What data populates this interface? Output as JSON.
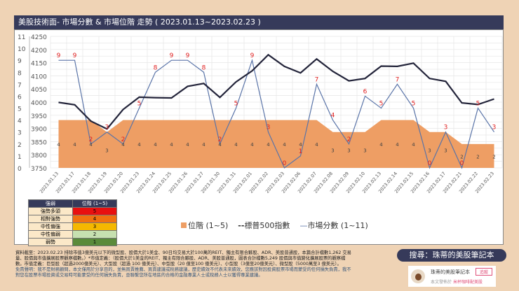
{
  "title": "美股技術面- 市場分數 & 市場位階 走勢 ( 2023.01.13~2023.02.23 )",
  "chart_data": {
    "type": "line",
    "categories": [
      "2023.01.13",
      "2023.01.17",
      "2023.01.18",
      "2023.01.19",
      "2023.01.20",
      "2023.01.23",
      "2023.01.24",
      "2023.01.25",
      "2023.01.26",
      "2023.01.27",
      "2023.01.30",
      "2023.01.31",
      "2023.02.01",
      "2023.02.02",
      "2023.02.03",
      "2023.02.06",
      "2023.02.07",
      "2023.02.08",
      "2023.02.09",
      "2023.02.10",
      "2023.02.13",
      "2023.02.14",
      "2023.02.15",
      "2023.02.16",
      "2023.02.17",
      "2023.02.21",
      "2023.02.22",
      "2023.02.23"
    ],
    "series": [
      {
        "name": "位階 (1~5)",
        "type": "area",
        "axis": "left-score",
        "color": "#ee9e64",
        "values": [
          4,
          4,
          4,
          3,
          4,
          4,
          4,
          4,
          4,
          4,
          4,
          4,
          4,
          4,
          4,
          4,
          4,
          3,
          3,
          3,
          4,
          4,
          4,
          3,
          3,
          2,
          2,
          2
        ]
      },
      {
        "name": "標普500指數",
        "type": "line",
        "axis": "left-index",
        "color": "#23243a",
        "values": [
          3999,
          3990,
          3928,
          3898,
          3972,
          4019,
          4017,
          4016,
          4060,
          4071,
          4018,
          4077,
          4119,
          4180,
          4136,
          4111,
          4164,
          4117,
          4081,
          4090,
          4137,
          4136,
          4148,
          4090,
          4079,
          3997,
          3991,
          4012
        ]
      },
      {
        "name": "市場分數 (1~11)",
        "type": "line",
        "axis": "left-score",
        "color": "#5a74a8",
        "values": [
          9,
          9,
          2,
          3,
          2,
          5,
          8,
          9,
          9,
          8,
          2,
          5,
          9,
          3,
          0,
          1,
          7,
          4,
          2,
          6,
          5,
          7,
          5,
          0,
          3,
          0,
          5,
          3
        ]
      }
    ],
    "score_axis": {
      "range": [
        0,
        11
      ],
      "ticks": [
        "0",
        "1",
        "2",
        "3",
        "4",
        "5",
        "6",
        "7",
        "8",
        "9",
        "10",
        "11"
      ]
    },
    "index_axis": {
      "range": [
        3750,
        4250
      ],
      "ticks": [
        "3750",
        "3800",
        "3850",
        "3900",
        "3950",
        "4000",
        "4050",
        "4100",
        "4150",
        "4200",
        "4250"
      ]
    },
    "grid": true,
    "legend_position": "bottom"
  },
  "legend": {
    "level": "位階 (1~5)",
    "spx": "標普500指數",
    "score": "市場分數 (1~11)",
    "spx_marker": "--",
    "score_marker": "—"
  },
  "level_table": {
    "headers": [
      "強弱",
      "位階 (1~5)"
    ],
    "rows": [
      {
        "name": "強勢多頭",
        "value": "5",
        "color": "#e81010"
      },
      {
        "name": "相對強勢",
        "value": "4",
        "color": "#f07010"
      },
      {
        "name": "中性偏強",
        "value": "3",
        "color": "#f5b800"
      },
      {
        "name": "中性偏弱",
        "value": "2",
        "color": "#c6e0b0"
      },
      {
        "name": "弱勢",
        "value": "1",
        "color": "#5a8a3a"
      }
    ]
  },
  "notes": [
    "資料截至：2023.02.23 排除市值3億美元以下的微型股、股價大於1美金、90日均交易大於100萬的REIT、獨主有限合夥股、ADR、美股普通股，本篇合計檔數1,262 交易",
    "量、股價與市值擴展股票觀察檔數。）*市值定義：（股價大於1美金的REIT、獨主有限合夥股、ADR、美股普通股，圖表合計檔數5,249 股價與市值變化擴展股票的觀察檔",
    "數。市值定義：巨型股（超過2000億美元）、大型股（超過 100 億美元）、中型股（20 億至100 億美元）、小型股（3億至20億美元）、微型股（5000萬至3 億美元）。"
  ],
  "disclaimer": [
    "免責聲明：我不是財務顧問，本文僅用於分享目的，並無買賣推薦、買賣建議或稅務建議，歷史績效不代表未來績效，您應該對因投資股票市場而蒙受的任何損失負責，我不",
    "對您在股票市場投資或交易時可能蒙受的任何損失負責，並聯繫您所在地區的合格的金融專業人士或稅務人士以獲得專業建議。"
  ],
  "search": "搜尋：珠蒂的美股筆記本",
  "card": {
    "name": "珠蒂的美股筆記本",
    "follow": "追蹤",
    "published_prefix": "本文發佈於",
    "published_in": "米杯咖啡配美股"
  }
}
